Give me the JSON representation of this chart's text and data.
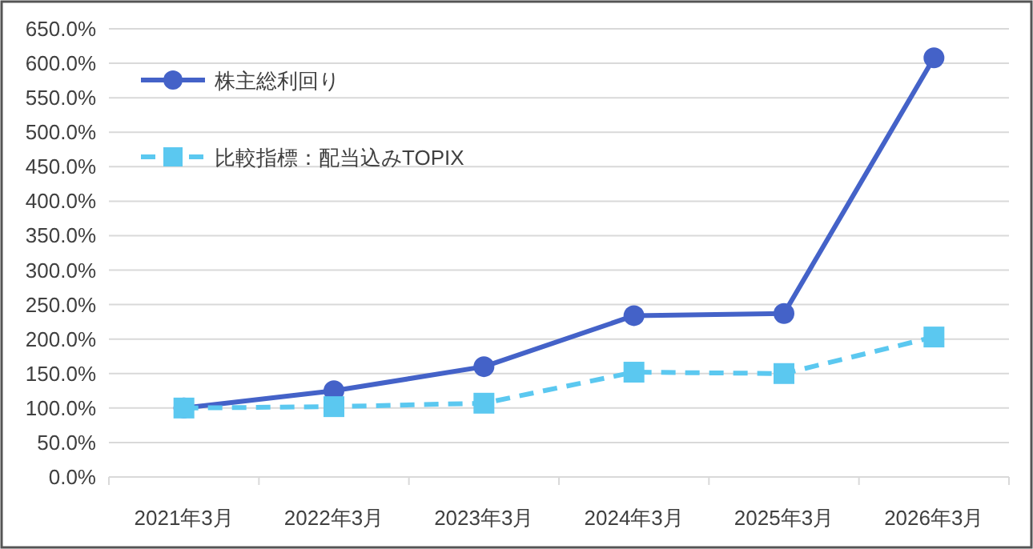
{
  "chart_data": {
    "type": "line",
    "categories": [
      "2021年3月",
      "2022年3月",
      "2023年3月",
      "2024年3月",
      "2025年3月",
      "2026年3月"
    ],
    "series": [
      {
        "name": "株主総利回り",
        "color": "#4462c8",
        "marker": "circle",
        "line_style": "solid",
        "values": [
          100,
          125,
          160,
          234,
          237,
          608
        ]
      },
      {
        "name": "比較指標：配当込みTOPIX",
        "color": "#5bc8f0",
        "marker": "square",
        "line_style": "dashed",
        "values": [
          100,
          102,
          107,
          152,
          150,
          203
        ]
      }
    ],
    "ylim": [
      0,
      650
    ],
    "yticks": [
      {
        "value": 0,
        "label": "0.0%"
      },
      {
        "value": 50,
        "label": "50.0%"
      },
      {
        "value": 100,
        "label": "100.0%"
      },
      {
        "value": 150,
        "label": "150.0%"
      },
      {
        "value": 200,
        "label": "200.0%"
      },
      {
        "value": 250,
        "label": "250.0%"
      },
      {
        "value": 300,
        "label": "300.0%"
      },
      {
        "value": 350,
        "label": "350.0%"
      },
      {
        "value": 400,
        "label": "400.0%"
      },
      {
        "value": 450,
        "label": "450.0%"
      },
      {
        "value": 500,
        "label": "500.0%"
      },
      {
        "value": 550,
        "label": "550.0%"
      },
      {
        "value": 600,
        "label": "600.0%"
      },
      {
        "value": 650,
        "label": "650.0%"
      }
    ],
    "grid": "y",
    "legend": "top left"
  }
}
